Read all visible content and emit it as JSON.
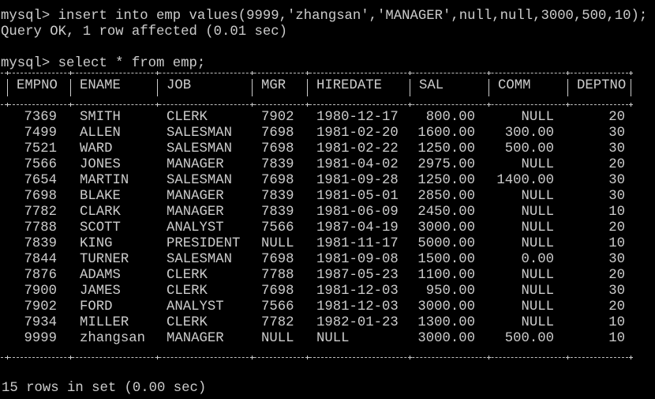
{
  "terminal": {
    "insert_command": "mysql> insert into emp values(9999,'zhangsan','MANAGER',null,null,3000,500,10);",
    "insert_result": "Query OK, 1 row affected (0.01 sec)",
    "select_command": "mysql> select * from emp;",
    "footer": "15 rows in set (0.00 sec)"
  },
  "table": {
    "headers": [
      "EMPNO",
      "ENAME",
      "JOB",
      "MGR",
      "HIREDATE",
      "SAL",
      "COMM",
      "DEPTNO"
    ],
    "rows": [
      [
        "7369",
        "SMITH",
        "CLERK",
        "7902",
        "1980-12-17",
        "800.00",
        "NULL",
        "20"
      ],
      [
        "7499",
        "ALLEN",
        "SALESMAN",
        "7698",
        "1981-02-20",
        "1600.00",
        "300.00",
        "30"
      ],
      [
        "7521",
        "WARD",
        "SALESMAN",
        "7698",
        "1981-02-22",
        "1250.00",
        "500.00",
        "30"
      ],
      [
        "7566",
        "JONES",
        "MANAGER",
        "7839",
        "1981-04-02",
        "2975.00",
        "NULL",
        "20"
      ],
      [
        "7654",
        "MARTIN",
        "SALESMAN",
        "7698",
        "1981-09-28",
        "1250.00",
        "1400.00",
        "30"
      ],
      [
        "7698",
        "BLAKE",
        "MANAGER",
        "7839",
        "1981-05-01",
        "2850.00",
        "NULL",
        "30"
      ],
      [
        "7782",
        "CLARK",
        "MANAGER",
        "7839",
        "1981-06-09",
        "2450.00",
        "NULL",
        "10"
      ],
      [
        "7788",
        "SCOTT",
        "ANALYST",
        "7566",
        "1987-04-19",
        "3000.00",
        "NULL",
        "20"
      ],
      [
        "7839",
        "KING",
        "PRESIDENT",
        "NULL",
        "1981-11-17",
        "5000.00",
        "NULL",
        "10"
      ],
      [
        "7844",
        "TURNER",
        "SALESMAN",
        "7698",
        "1981-09-08",
        "1500.00",
        "0.00",
        "30"
      ],
      [
        "7876",
        "ADAMS",
        "CLERK",
        "7788",
        "1987-05-23",
        "1100.00",
        "NULL",
        "20"
      ],
      [
        "7900",
        "JAMES",
        "CLERK",
        "7698",
        "1981-12-03",
        "950.00",
        "NULL",
        "30"
      ],
      [
        "7902",
        "FORD",
        "ANALYST",
        "7566",
        "1981-12-03",
        "3000.00",
        "NULL",
        "20"
      ],
      [
        "7934",
        "MILLER",
        "CLERK",
        "7782",
        "1982-01-23",
        "1300.00",
        "NULL",
        "10"
      ],
      [
        "9999",
        "zhangsan",
        "MANAGER",
        "NULL",
        "NULL",
        "3000.00",
        "500.00",
        "10"
      ]
    ]
  }
}
